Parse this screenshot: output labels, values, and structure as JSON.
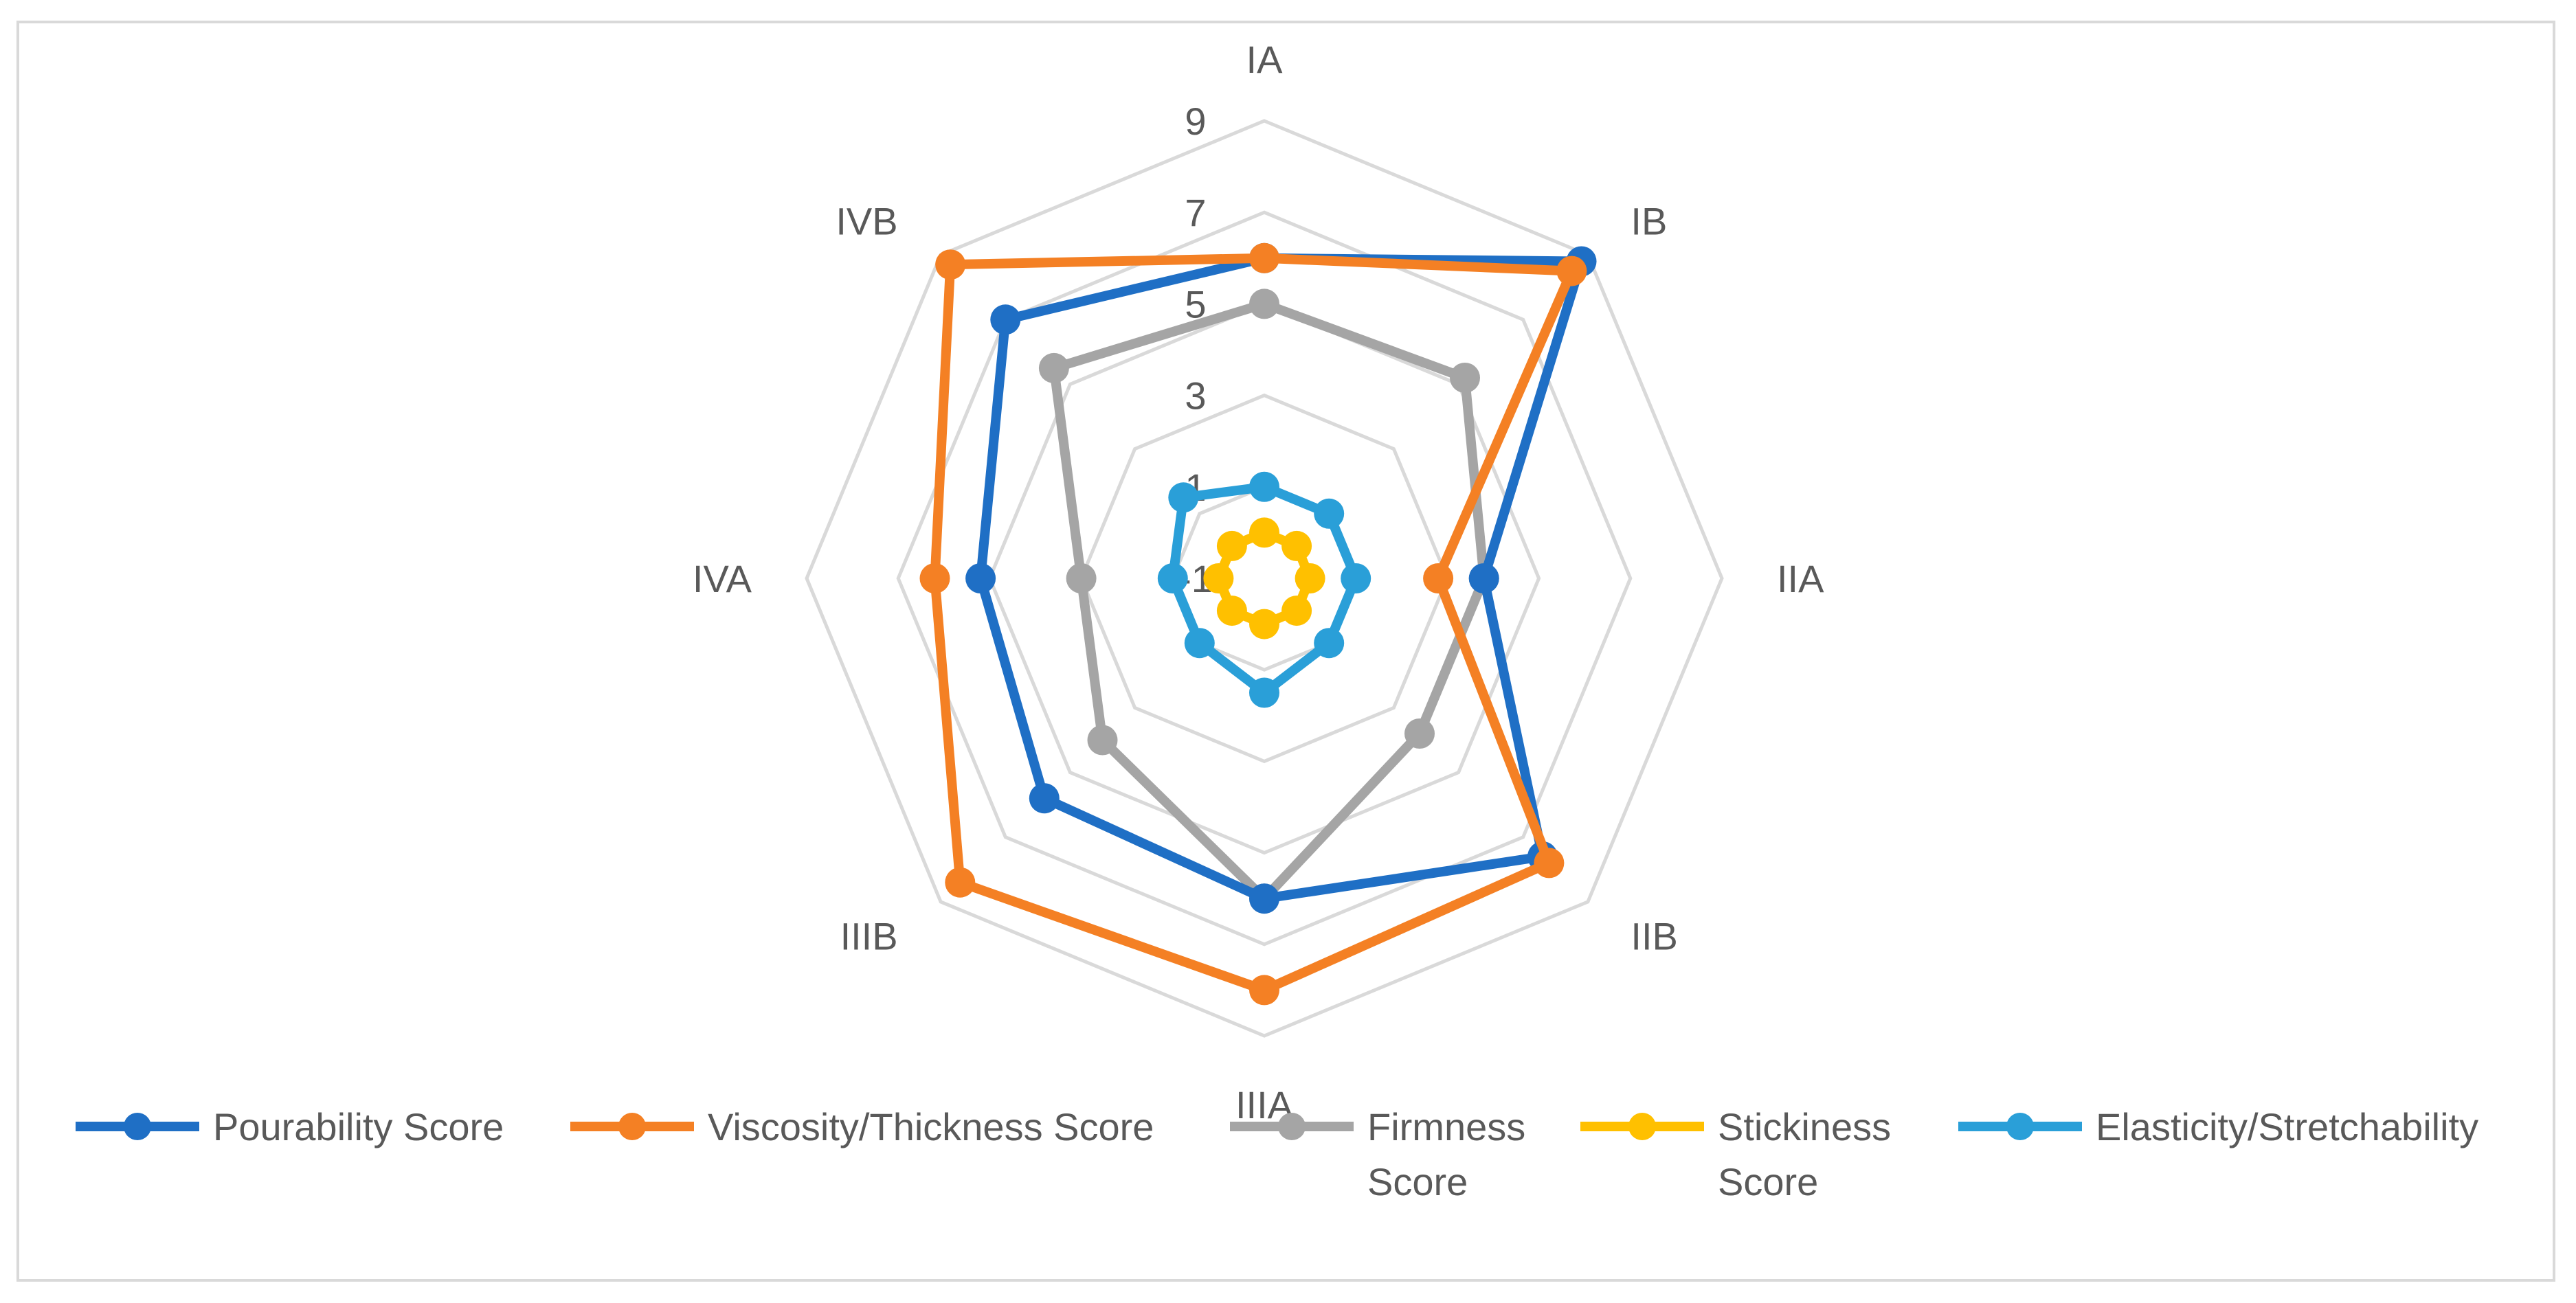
{
  "chart_data": {
    "type": "radar",
    "title": "",
    "categories": [
      "IA",
      "IB",
      "IIA",
      "IIB",
      "IIIA",
      "IIIB",
      "IVA",
      "IVB"
    ],
    "rlim": [
      -1,
      9
    ],
    "ticks": [
      "-1",
      "1",
      "3",
      "5",
      "7",
      "9"
    ],
    "grid": true,
    "legend_position": "bottom",
    "series": [
      {
        "name": "Pourability Score",
        "color": "#1f6fc5",
        "values": [
          6.0,
          8.8,
          3.8,
          7.6,
          6.0,
          5.8,
          5.2,
          7.0
        ]
      },
      {
        "name": "Viscosity/Thickness Score",
        "color": "#f48024",
        "values": [
          6.0,
          8.5,
          2.8,
          7.8,
          8.0,
          8.4,
          6.2,
          8.7
        ]
      },
      {
        "name": "Firmness Score",
        "color": "#a5a5a5",
        "values": [
          5.0,
          5.2,
          3.8,
          3.8,
          6.0,
          4.0,
          3.0,
          5.5
        ]
      },
      {
        "name": "Stickiness Score",
        "color": "#ffc000",
        "values": [
          0.0,
          0.0,
          0.0,
          0.0,
          0.0,
          0.0,
          0.0,
          0.0
        ]
      },
      {
        "name": "Elasticity/Stretchability",
        "color": "#2a9fd8",
        "values": [
          1.0,
          1.0,
          1.0,
          1.0,
          1.5,
          1.0,
          1.0,
          1.5
        ]
      }
    ],
    "legend_labels": [
      [
        "Pourability Score"
      ],
      [
        "Viscosity/Thickness Score"
      ],
      [
        "Firmness",
        "Score"
      ],
      [
        "Stickiness",
        "Score"
      ],
      [
        "Elasticity/Stretchability"
      ]
    ]
  }
}
